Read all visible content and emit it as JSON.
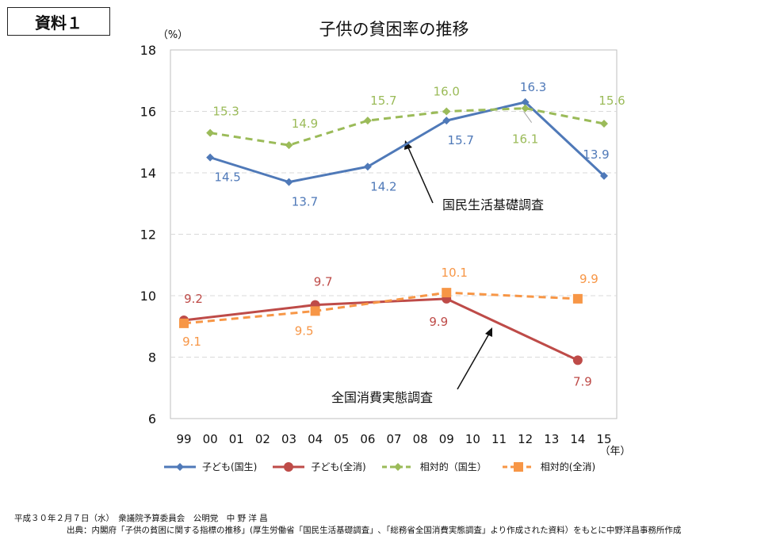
{
  "document_label": "資料１",
  "chart_data": {
    "type": "line",
    "title": "子供の貧困率の推移",
    "ylabel": "（%）",
    "xlabel": "（年）",
    "ylim": [
      6,
      18
    ],
    "yticks": [
      6,
      8,
      10,
      12,
      14,
      16,
      18
    ],
    "categories": [
      "99",
      "00",
      "01",
      "02",
      "03",
      "04",
      "05",
      "06",
      "07",
      "08",
      "09",
      "10",
      "11",
      "12",
      "13",
      "14",
      "15"
    ],
    "grid": true,
    "legend_position": "bottom",
    "series": [
      {
        "name": "子ども(国生)",
        "color": "#4f79b8",
        "dash": false,
        "marker": "diamond",
        "points": [
          {
            "x": "00",
            "y": 14.5
          },
          {
            "x": "03",
            "y": 13.7
          },
          {
            "x": "06",
            "y": 14.2
          },
          {
            "x": "09",
            "y": 15.7
          },
          {
            "x": "12",
            "y": 16.3
          },
          {
            "x": "15",
            "y": 13.9
          }
        ]
      },
      {
        "name": "子ども(全消)",
        "color": "#be4b48",
        "dash": false,
        "marker": "circle",
        "points": [
          {
            "x": "99",
            "y": 9.2
          },
          {
            "x": "04",
            "y": 9.7
          },
          {
            "x": "09",
            "y": 9.9
          },
          {
            "x": "14",
            "y": 7.9
          }
        ]
      },
      {
        "name": "相対的（国生）",
        "color": "#9bbb59",
        "dash": true,
        "marker": "diamond",
        "points": [
          {
            "x": "00",
            "y": 15.3
          },
          {
            "x": "03",
            "y": 14.9
          },
          {
            "x": "06",
            "y": 15.7
          },
          {
            "x": "09",
            "y": 16.0
          },
          {
            "x": "12",
            "y": 16.1
          },
          {
            "x": "15",
            "y": 15.6
          }
        ]
      },
      {
        "name": "相対的(全消)",
        "color": "#f79646",
        "dash": true,
        "marker": "square",
        "points": [
          {
            "x": "99",
            "y": 9.1
          },
          {
            "x": "04",
            "y": 9.5
          },
          {
            "x": "09",
            "y": 10.1
          },
          {
            "x": "14",
            "y": 9.9
          }
        ]
      }
    ],
    "annotations": [
      {
        "text": "国民生活基礎調査"
      },
      {
        "text": "全国消費実態調査"
      }
    ]
  },
  "footer": {
    "line1": "平成３０年２月７日（水）　衆議院予算委員会　公明党　中 野 洋 昌",
    "line2": "出典：内閣府「子供の貧困に関する指標の推移」(厚生労働省「国民生活基礎調査」､「総務省全国消費実態調査」より作成された資料）をもとに中野洋昌事務所作成"
  }
}
